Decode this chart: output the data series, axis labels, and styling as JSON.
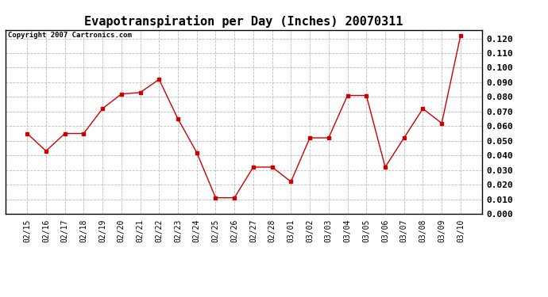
{
  "title": "Evapotranspiration per Day (Inches) 20070311",
  "copyright_text": "Copyright 2007 Cartronics.com",
  "dates": [
    "02/15",
    "02/16",
    "02/17",
    "02/18",
    "02/19",
    "02/20",
    "02/21",
    "02/22",
    "02/23",
    "02/24",
    "02/25",
    "02/26",
    "02/27",
    "02/28",
    "03/01",
    "03/02",
    "03/03",
    "03/04",
    "03/05",
    "03/06",
    "03/07",
    "03/08",
    "03/09",
    "03/10"
  ],
  "values": [
    0.055,
    0.043,
    0.055,
    0.055,
    0.072,
    0.082,
    0.083,
    0.092,
    0.065,
    0.042,
    0.011,
    0.011,
    0.032,
    0.032,
    0.022,
    0.052,
    0.052,
    0.081,
    0.081,
    0.032,
    0.052,
    0.072,
    0.062,
    0.122
  ],
  "line_color": "#cc0000",
  "marker": "s",
  "marker_size": 2.5,
  "ylim": [
    0.0,
    0.126
  ],
  "yticks": [
    0.0,
    0.01,
    0.02,
    0.03,
    0.04,
    0.05,
    0.06,
    0.07,
    0.08,
    0.09,
    0.1,
    0.11,
    0.12
  ],
  "grid_color": "#bbbbbb",
  "bg_color": "#ffffff",
  "title_fontsize": 11,
  "copyright_fontsize": 6.5,
  "tick_fontsize": 7,
  "ytick_fontsize": 8
}
